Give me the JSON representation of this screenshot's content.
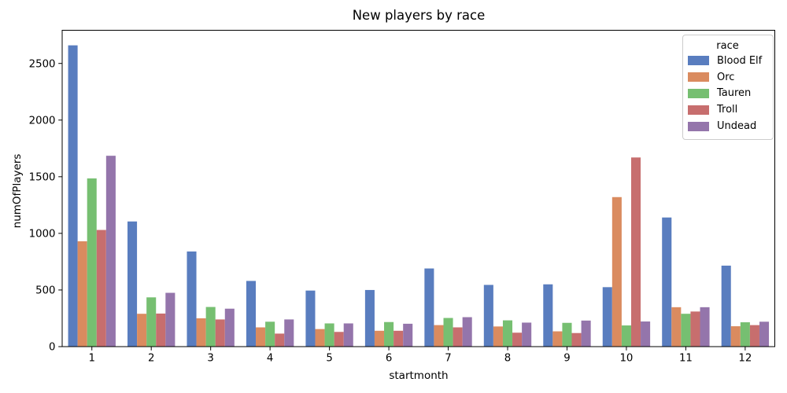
{
  "chart_data": {
    "type": "bar",
    "title": "New players by race",
    "xlabel": "startmonth",
    "ylabel": "numOfPlayers",
    "categories": [
      "1",
      "2",
      "3",
      "4",
      "5",
      "6",
      "7",
      "8",
      "9",
      "10",
      "11",
      "12"
    ],
    "series": [
      {
        "name": "Blood Elf",
        "color": "#597DBF",
        "values": [
          2660,
          1105,
          840,
          580,
          495,
          500,
          690,
          545,
          550,
          525,
          1140,
          715
        ]
      },
      {
        "name": "Orc",
        "color": "#DA8B5F",
        "values": [
          930,
          290,
          250,
          170,
          155,
          140,
          190,
          178,
          135,
          1320,
          348,
          180
        ]
      },
      {
        "name": "Tauren",
        "color": "#76BF71",
        "values": [
          1485,
          435,
          350,
          220,
          205,
          217,
          253,
          232,
          210,
          187,
          290,
          215
        ]
      },
      {
        "name": "Troll",
        "color": "#C76E6E",
        "values": [
          1030,
          292,
          240,
          115,
          130,
          140,
          170,
          123,
          120,
          1670,
          310,
          190
        ]
      },
      {
        "name": "Undead",
        "color": "#9475AB",
        "values": [
          1685,
          475,
          335,
          240,
          205,
          202,
          260,
          212,
          230,
          222,
          348,
          220
        ]
      }
    ],
    "y_ticks": [
      0,
      500,
      1000,
      1500,
      2000,
      2500
    ],
    "ylim": [
      0,
      2793
    ],
    "grid": false,
    "legend": {
      "title": "race",
      "position": "upper right"
    },
    "axis_color": "#000000",
    "background_color": "#ffffff"
  }
}
